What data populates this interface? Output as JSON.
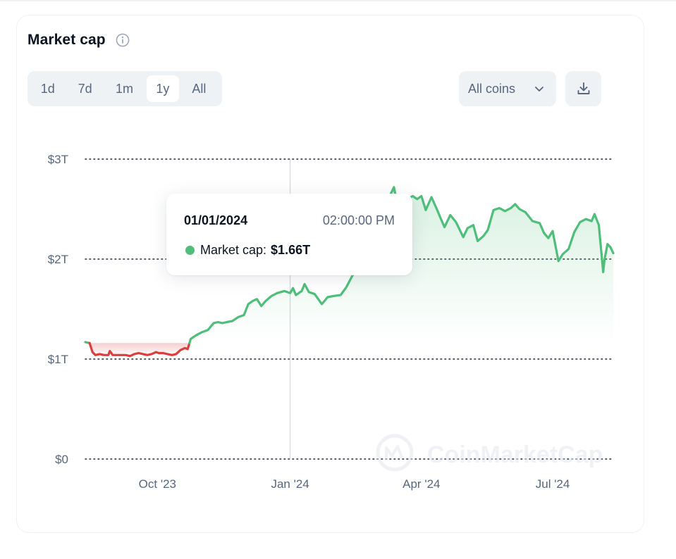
{
  "header": {
    "title": "Market cap",
    "info_icon": "info-icon"
  },
  "range_tabs": {
    "options": [
      "1d",
      "7d",
      "1m",
      "1y",
      "All"
    ],
    "selected": "1y"
  },
  "coin_filter": {
    "selected": "All coins",
    "icon": "chevron-down-icon"
  },
  "download": {
    "icon": "download-icon"
  },
  "tooltip": {
    "date": "01/01/2024",
    "time": "02:00:00 PM",
    "label": "Market cap:",
    "value": "$1.66T"
  },
  "watermark": "CoinMarketCap",
  "colors": {
    "up": "#4fbe7a",
    "down": "#dc3d3d",
    "grid": "#1f2937",
    "axis_text": "#58667e",
    "crosshair": "#cfd6e4"
  },
  "chart_data": {
    "type": "line",
    "title": "",
    "xlabel": "",
    "ylabel": "",
    "ylim": [
      0,
      3
    ],
    "y_unit": "trillion USD",
    "y_ticks": [
      {
        "value": 3,
        "label": "$3T"
      },
      {
        "value": 2,
        "label": "$2T"
      },
      {
        "value": 1,
        "label": "$1T"
      },
      {
        "value": 0,
        "label": "$0"
      }
    ],
    "x_ticks": [
      {
        "date": "2023-10-01",
        "label": "Oct '23"
      },
      {
        "date": "2024-01-01",
        "label": "Jan '24"
      },
      {
        "date": "2024-04-01",
        "label": "Apr '24"
      },
      {
        "date": "2024-07-01",
        "label": "Jul '24"
      }
    ],
    "x_range": [
      "2023-08-12",
      "2024-08-12"
    ],
    "baseline": 1.16,
    "grid": "dotted horizontal",
    "highlight": {
      "date": "2024-01-01",
      "value": 1.66
    },
    "series": [
      {
        "name": "Market cap",
        "points": [
          [
            "2023-08-12",
            1.17
          ],
          [
            "2023-08-15",
            1.16
          ],
          [
            "2023-08-17",
            1.07
          ],
          [
            "2023-08-19",
            1.04
          ],
          [
            "2023-08-22",
            1.05
          ],
          [
            "2023-08-25",
            1.04
          ],
          [
            "2023-08-28",
            1.04
          ],
          [
            "2023-08-29",
            1.08
          ],
          [
            "2023-08-31",
            1.04
          ],
          [
            "2023-09-03",
            1.04
          ],
          [
            "2023-09-06",
            1.04
          ],
          [
            "2023-09-09",
            1.04
          ],
          [
            "2023-09-12",
            1.03
          ],
          [
            "2023-09-15",
            1.05
          ],
          [
            "2023-09-18",
            1.06
          ],
          [
            "2023-09-21",
            1.05
          ],
          [
            "2023-09-24",
            1.04
          ],
          [
            "2023-09-27",
            1.05
          ],
          [
            "2023-09-30",
            1.07
          ],
          [
            "2023-10-02",
            1.06
          ],
          [
            "2023-10-05",
            1.06
          ],
          [
            "2023-10-08",
            1.05
          ],
          [
            "2023-10-11",
            1.04
          ],
          [
            "2023-10-14",
            1.05
          ],
          [
            "2023-10-17",
            1.09
          ],
          [
            "2023-10-20",
            1.11
          ],
          [
            "2023-10-22",
            1.1
          ],
          [
            "2023-10-24",
            1.2
          ],
          [
            "2023-10-28",
            1.24
          ],
          [
            "2023-11-01",
            1.27
          ],
          [
            "2023-11-05",
            1.29
          ],
          [
            "2023-11-09",
            1.36
          ],
          [
            "2023-11-12",
            1.37
          ],
          [
            "2023-11-15",
            1.36
          ],
          [
            "2023-11-18",
            1.37
          ],
          [
            "2023-11-22",
            1.38
          ],
          [
            "2023-11-26",
            1.42
          ],
          [
            "2023-11-30",
            1.44
          ],
          [
            "2023-12-03",
            1.55
          ],
          [
            "2023-12-06",
            1.58
          ],
          [
            "2023-12-09",
            1.6
          ],
          [
            "2023-12-12",
            1.53
          ],
          [
            "2023-12-15",
            1.58
          ],
          [
            "2023-12-19",
            1.63
          ],
          [
            "2023-12-23",
            1.66
          ],
          [
            "2023-12-28",
            1.68
          ],
          [
            "2024-01-01",
            1.66
          ],
          [
            "2024-01-03",
            1.71
          ],
          [
            "2024-01-05",
            1.64
          ],
          [
            "2024-01-09",
            1.68
          ],
          [
            "2024-01-11",
            1.75
          ],
          [
            "2024-01-14",
            1.67
          ],
          [
            "2024-01-18",
            1.65
          ],
          [
            "2024-01-23",
            1.55
          ],
          [
            "2024-01-27",
            1.62
          ],
          [
            "2024-01-31",
            1.63
          ],
          [
            "2024-02-05",
            1.64
          ],
          [
            "2024-02-09",
            1.72
          ],
          [
            "2024-02-13",
            1.83
          ],
          [
            "2024-02-18",
            1.95
          ],
          [
            "2024-02-22",
            1.99
          ],
          [
            "2024-02-26",
            2.1
          ],
          [
            "2024-03-01",
            2.33
          ],
          [
            "2024-03-05",
            2.52
          ],
          [
            "2024-03-09",
            2.6
          ],
          [
            "2024-03-13",
            2.72
          ],
          [
            "2024-03-14",
            2.64
          ],
          [
            "2024-03-18",
            2.43
          ],
          [
            "2024-03-20",
            2.48
          ],
          [
            "2024-03-22",
            2.6
          ],
          [
            "2024-03-26",
            2.63
          ],
          [
            "2024-03-29",
            2.6
          ],
          [
            "2024-04-01",
            2.63
          ],
          [
            "2024-04-04",
            2.49
          ],
          [
            "2024-04-08",
            2.62
          ],
          [
            "2024-04-12",
            2.49
          ],
          [
            "2024-04-14",
            2.42
          ],
          [
            "2024-04-17",
            2.32
          ],
          [
            "2024-04-21",
            2.44
          ],
          [
            "2024-04-25",
            2.37
          ],
          [
            "2024-04-30",
            2.22
          ],
          [
            "2024-05-03",
            2.31
          ],
          [
            "2024-05-07",
            2.34
          ],
          [
            "2024-05-10",
            2.18
          ],
          [
            "2024-05-14",
            2.23
          ],
          [
            "2024-05-17",
            2.29
          ],
          [
            "2024-05-21",
            2.49
          ],
          [
            "2024-05-25",
            2.51
          ],
          [
            "2024-05-29",
            2.48
          ],
          [
            "2024-06-02",
            2.51
          ],
          [
            "2024-06-05",
            2.55
          ],
          [
            "2024-06-08",
            2.5
          ],
          [
            "2024-06-12",
            2.47
          ],
          [
            "2024-06-17",
            2.38
          ],
          [
            "2024-06-22",
            2.36
          ],
          [
            "2024-06-25",
            2.26
          ],
          [
            "2024-06-28",
            2.21
          ],
          [
            "2024-07-01",
            2.28
          ],
          [
            "2024-07-05",
            1.98
          ],
          [
            "2024-07-08",
            2.05
          ],
          [
            "2024-07-12",
            2.1
          ],
          [
            "2024-07-16",
            2.27
          ],
          [
            "2024-07-20",
            2.37
          ],
          [
            "2024-07-24",
            2.4
          ],
          [
            "2024-07-28",
            2.38
          ],
          [
            "2024-07-30",
            2.45
          ],
          [
            "2024-08-02",
            2.34
          ],
          [
            "2024-08-05",
            1.87
          ],
          [
            "2024-08-06",
            2.0
          ],
          [
            "2024-08-08",
            2.15
          ],
          [
            "2024-08-10",
            2.12
          ],
          [
            "2024-08-12",
            2.06
          ]
        ]
      }
    ]
  }
}
